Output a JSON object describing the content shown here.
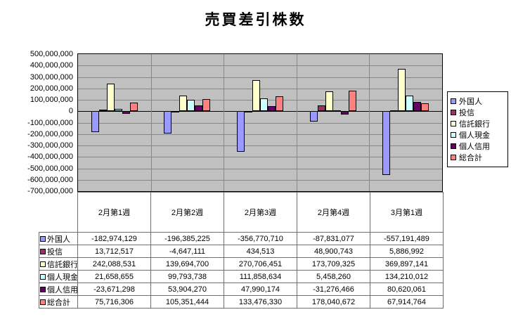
{
  "title": "売買差引株数",
  "chart_data": {
    "type": "bar",
    "title": "売買差引株数",
    "categories": [
      "2月第1週",
      "2月第2週",
      "2月第3週",
      "2月第4週",
      "3月第1週"
    ],
    "series": [
      {
        "name": "外国人",
        "color": "#9999FF",
        "values": [
          -182974129,
          -196385225,
          -356770710,
          -87831077,
          -557191489
        ]
      },
      {
        "name": "投信",
        "color": "#993366",
        "values": [
          13712517,
          -4647111,
          434513,
          48900743,
          5886992
        ]
      },
      {
        "name": "信託銀行",
        "color": "#FFFFCC",
        "values": [
          242088531,
          139694700,
          270706451,
          173709325,
          369897141
        ]
      },
      {
        "name": "個人現金",
        "color": "#CCFFFF",
        "values": [
          21658655,
          99793738,
          111858634,
          5458260,
          134210012
        ]
      },
      {
        "name": "個人信用",
        "color": "#660066",
        "values": [
          -23671298,
          53904270,
          47990174,
          -31276466,
          80620061
        ]
      },
      {
        "name": "総合計",
        "color": "#FF8080",
        "values": [
          75716306,
          105351444,
          133476330,
          178040672,
          67914764
        ]
      }
    ],
    "ylim": [
      -700000000,
      500000000
    ],
    "ytick_step": 100000000,
    "ytick_labels": [
      "500,000,000",
      "400,000,000",
      "300,000,000",
      "200,000,000",
      "100,000,000",
      "0",
      "-100,000,000",
      "-200,000,000",
      "-300,000,000",
      "-400,000,000",
      "-500,000,000",
      "-600,000,000",
      "-700,000,000"
    ],
    "grid": true,
    "legend_position": "right",
    "plot_bg": "#C0C0C0",
    "gridline_color": "#878787",
    "zero_line_color": "#000000"
  }
}
